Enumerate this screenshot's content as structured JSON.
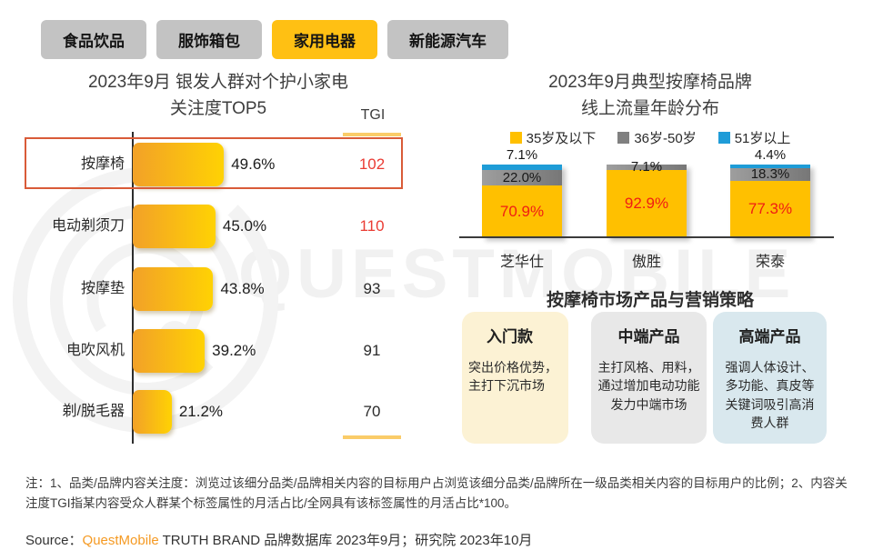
{
  "watermark": "QUESTMOBILE",
  "tabs": [
    {
      "label": "食品饮品",
      "active": false
    },
    {
      "label": "服饰箱包",
      "active": false
    },
    {
      "label": "家用电器",
      "active": true
    },
    {
      "label": "新能源汽车",
      "active": false
    }
  ],
  "left_chart": {
    "title_line1": "2023年9月 银发人群对个护小家电",
    "title_line2": "关注度TOP5",
    "tgi_header": "TGI",
    "highlight_row": "按摩椅",
    "rows": [
      {
        "label": "按摩椅",
        "value_label": "49.6%",
        "tgi": "102",
        "tgi_red": true
      },
      {
        "label": "电动剃须刀",
        "value_label": "45.0%",
        "tgi": "110",
        "tgi_red": true
      },
      {
        "label": "按摩垫",
        "value_label": "43.8%",
        "tgi": "93",
        "tgi_red": false
      },
      {
        "label": "电吹风机",
        "value_label": "39.2%",
        "tgi": "91",
        "tgi_red": false
      },
      {
        "label": "剃/脱毛器",
        "value_label": "21.2%",
        "tgi": "70",
        "tgi_red": false
      }
    ]
  },
  "right_chart": {
    "title_line1": "2023年9月典型按摩椅品牌",
    "title_line2": "线上流量年龄分布",
    "legend": [
      {
        "label": "35岁及以下",
        "color": "#FFC000"
      },
      {
        "label": "36岁-50岁",
        "color": "#808080"
      },
      {
        "label": "51岁以上",
        "color": "#1F9CD8"
      }
    ],
    "bars": [
      {
        "brand": "芝华仕",
        "yellow_label": "70.9%",
        "gray_label": "22.0%",
        "blue_label": "7.1%"
      },
      {
        "brand": "傲胜",
        "yellow_label": "92.9%",
        "gray_label": "7.1%",
        "blue_label": ""
      },
      {
        "brand": "荣泰",
        "yellow_label": "77.3%",
        "gray_label": "18.3%",
        "blue_label": "4.4%"
      }
    ]
  },
  "strategy": {
    "title": "按摩椅市场产品与营销策略",
    "cards": [
      {
        "title": "入门款",
        "body": "突出价格优势，主打下沉市场",
        "bg": "#FCF2D4"
      },
      {
        "title": "中端产品",
        "body": "主打风格、用料，通过增加电动功能发力中端市场",
        "bg": "#E8E8E8"
      },
      {
        "title": "高端产品",
        "body": "强调人体设计、多功能、真皮等关键词吸引高消费人群",
        "bg": "#D9E8EE"
      }
    ]
  },
  "footer": {
    "note": "注：1、品类/品牌内容关注度：浏览过该细分品类/品牌相关内容的目标用户占浏览该细分品类/品牌所在一级品类相关内容的目标用户的比例；2、内容关注度TGI指某内容受众人群某个标签属性的月活占比/全网具有该标签属性的月活占比*100。",
    "source_prefix": "Source：",
    "source_brand": "QuestMobile",
    "source_rest": " TRUTH BRAND 品牌数据库 2023年9月；研究院 2023年10月"
  },
  "chart_data": [
    {
      "type": "bar",
      "orientation": "horizontal",
      "title": "2023年9月 银发人群对个护小家电关注度TOP5",
      "categories": [
        "按摩椅",
        "电动剃须刀",
        "按摩垫",
        "电吹风机",
        "剃/脱毛器"
      ],
      "values": [
        49.6,
        45.0,
        43.8,
        39.2,
        21.2
      ],
      "unit": "%",
      "secondary_metric": {
        "name": "TGI",
        "values": [
          102,
          110,
          93,
          91,
          70
        ]
      },
      "highlighted_category": "按摩椅",
      "bar_color": "#FFC000",
      "xlim": [
        0,
        55
      ],
      "grid": false
    },
    {
      "type": "bar",
      "subtype": "stacked-100",
      "title": "2023年9月典型按摩椅品牌线上流量年龄分布",
      "categories": [
        "芝华仕",
        "傲胜",
        "荣泰"
      ],
      "series": [
        {
          "name": "35岁及以下",
          "color": "#FFC000",
          "values": [
            70.9,
            92.9,
            77.3
          ]
        },
        {
          "name": "36岁-50岁",
          "color": "#808080",
          "values": [
            22.0,
            7.1,
            18.3
          ]
        },
        {
          "name": "51岁以上",
          "color": "#1F9CD8",
          "values": [
            7.1,
            0,
            4.4
          ]
        }
      ],
      "unit": "%",
      "ylim": [
        0,
        100
      ],
      "legend_position": "top",
      "grid": false
    }
  ]
}
